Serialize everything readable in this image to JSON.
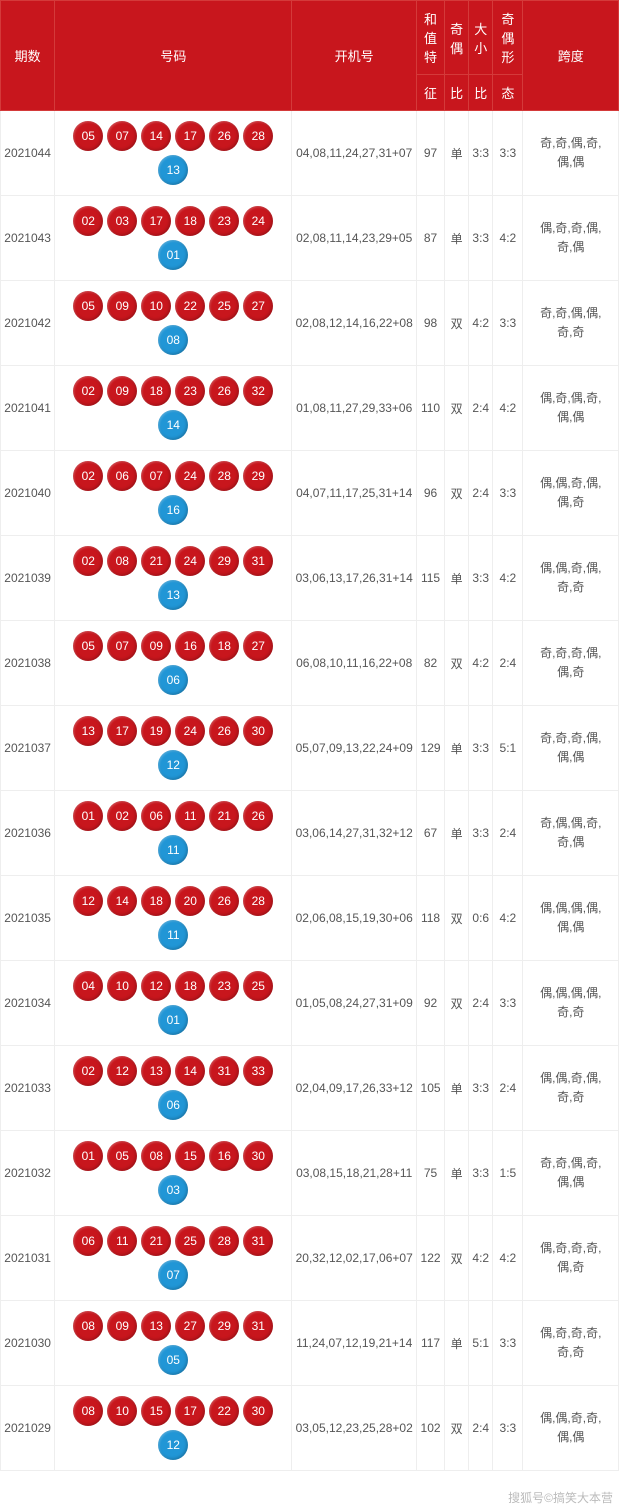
{
  "headers": {
    "period": "期数",
    "numbers": "号码",
    "machine": "开机号",
    "sum_top": "和值特",
    "sum_bot": "征",
    "oe_top": "奇偶",
    "oe_bot": "比",
    "bs_top": "大小",
    "bs_bot": "比",
    "oef_top": "奇偶形",
    "oef_bot": "态",
    "span": "跨度"
  },
  "ball_colors": {
    "red": "#c8161d",
    "blue": "#2196d6"
  },
  "rows": [
    {
      "period": "2021044",
      "red": [
        "05",
        "07",
        "14",
        "17",
        "26",
        "28"
      ],
      "blue": "13",
      "machine": "04,08,11,24,27,31+07",
      "sum": "97",
      "oe": "单",
      "oer": "3:3",
      "bs": "3:3",
      "span": "奇,奇,偶,奇,偶,偶"
    },
    {
      "period": "2021043",
      "red": [
        "02",
        "03",
        "17",
        "18",
        "23",
        "24"
      ],
      "blue": "01",
      "machine": "02,08,11,14,23,29+05",
      "sum": "87",
      "oe": "单",
      "oer": "3:3",
      "bs": "4:2",
      "span": "偶,奇,奇,偶,奇,偶"
    },
    {
      "period": "2021042",
      "red": [
        "05",
        "09",
        "10",
        "22",
        "25",
        "27"
      ],
      "blue": "08",
      "machine": "02,08,12,14,16,22+08",
      "sum": "98",
      "oe": "双",
      "oer": "4:2",
      "bs": "3:3",
      "span": "奇,奇,偶,偶,奇,奇"
    },
    {
      "period": "2021041",
      "red": [
        "02",
        "09",
        "18",
        "23",
        "26",
        "32"
      ],
      "blue": "14",
      "machine": "01,08,11,27,29,33+06",
      "sum": "110",
      "oe": "双",
      "oer": "2:4",
      "bs": "4:2",
      "span": "偶,奇,偶,奇,偶,偶"
    },
    {
      "period": "2021040",
      "red": [
        "02",
        "06",
        "07",
        "24",
        "28",
        "29"
      ],
      "blue": "16",
      "machine": "04,07,11,17,25,31+14",
      "sum": "96",
      "oe": "双",
      "oer": "2:4",
      "bs": "3:3",
      "span": "偶,偶,奇,偶,偶,奇"
    },
    {
      "period": "2021039",
      "red": [
        "02",
        "08",
        "21",
        "24",
        "29",
        "31"
      ],
      "blue": "13",
      "machine": "03,06,13,17,26,31+14",
      "sum": "115",
      "oe": "单",
      "oer": "3:3",
      "bs": "4:2",
      "span": "偶,偶,奇,偶,奇,奇"
    },
    {
      "period": "2021038",
      "red": [
        "05",
        "07",
        "09",
        "16",
        "18",
        "27"
      ],
      "blue": "06",
      "machine": "06,08,10,11,16,22+08",
      "sum": "82",
      "oe": "双",
      "oer": "4:2",
      "bs": "2:4",
      "span": "奇,奇,奇,偶,偶,奇"
    },
    {
      "period": "2021037",
      "red": [
        "13",
        "17",
        "19",
        "24",
        "26",
        "30"
      ],
      "blue": "12",
      "machine": "05,07,09,13,22,24+09",
      "sum": "129",
      "oe": "单",
      "oer": "3:3",
      "bs": "5:1",
      "span": "奇,奇,奇,偶,偶,偶"
    },
    {
      "period": "2021036",
      "red": [
        "01",
        "02",
        "06",
        "11",
        "21",
        "26"
      ],
      "blue": "11",
      "machine": "03,06,14,27,31,32+12",
      "sum": "67",
      "oe": "单",
      "oer": "3:3",
      "bs": "2:4",
      "span": "奇,偶,偶,奇,奇,偶"
    },
    {
      "period": "2021035",
      "red": [
        "12",
        "14",
        "18",
        "20",
        "26",
        "28"
      ],
      "blue": "11",
      "machine": "02,06,08,15,19,30+06",
      "sum": "118",
      "oe": "双",
      "oer": "0:6",
      "bs": "4:2",
      "span": "偶,偶,偶,偶,偶,偶"
    },
    {
      "period": "2021034",
      "red": [
        "04",
        "10",
        "12",
        "18",
        "23",
        "25"
      ],
      "blue": "01",
      "machine": "01,05,08,24,27,31+09",
      "sum": "92",
      "oe": "双",
      "oer": "2:4",
      "bs": "3:3",
      "span": "偶,偶,偶,偶,奇,奇"
    },
    {
      "period": "2021033",
      "red": [
        "02",
        "12",
        "13",
        "14",
        "31",
        "33"
      ],
      "blue": "06",
      "machine": "02,04,09,17,26,33+12",
      "sum": "105",
      "oe": "单",
      "oer": "3:3",
      "bs": "2:4",
      "span": "偶,偶,奇,偶,奇,奇"
    },
    {
      "period": "2021032",
      "red": [
        "01",
        "05",
        "08",
        "15",
        "16",
        "30"
      ],
      "blue": "03",
      "machine": "03,08,15,18,21,28+11",
      "sum": "75",
      "oe": "单",
      "oer": "3:3",
      "bs": "1:5",
      "span": "奇,奇,偶,奇,偶,偶"
    },
    {
      "period": "2021031",
      "red": [
        "06",
        "11",
        "21",
        "25",
        "28",
        "31"
      ],
      "blue": "07",
      "machine": "20,32,12,02,17,06+07",
      "sum": "122",
      "oe": "双",
      "oer": "4:2",
      "bs": "4:2",
      "span": "偶,奇,奇,奇,偶,奇"
    },
    {
      "period": "2021030",
      "red": [
        "08",
        "09",
        "13",
        "27",
        "29",
        "31"
      ],
      "blue": "05",
      "machine": "11,24,07,12,19,21+14",
      "sum": "117",
      "oe": "单",
      "oer": "5:1",
      "bs": "3:3",
      "span": "偶,奇,奇,奇,奇,奇"
    },
    {
      "period": "2021029",
      "red": [
        "08",
        "10",
        "15",
        "17",
        "22",
        "30"
      ],
      "blue": "12",
      "machine": "03,05,12,23,25,28+02",
      "sum": "102",
      "oe": "双",
      "oer": "2:4",
      "bs": "3:3",
      "span": "偶,偶,奇,奇,偶,偶"
    }
  ],
  "watermark": "搜狐号©搞笑大本营"
}
